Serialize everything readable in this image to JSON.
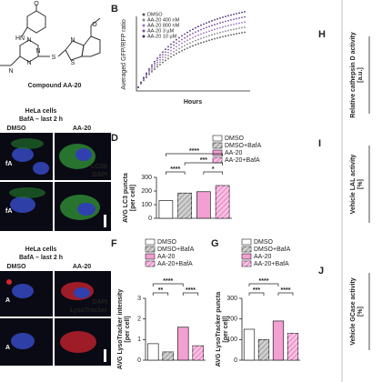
{
  "compound": {
    "atoms": [
      "O",
      "HN",
      "N",
      "N",
      "N",
      "S",
      "S",
      "N",
      "O",
      "N"
    ],
    "name": "Compound AA-20"
  },
  "panel_b": {
    "letter": "B",
    "y_label": "Averaged GFP/RFP ratio",
    "x_label": "Hours",
    "legend": [
      "DMSO",
      "AA-20 400 nM",
      "AA-20 800 nM",
      "AA-20 3 µM",
      "AA-20 10 µM"
    ]
  },
  "lc3_images": {
    "title": "HeLa cells",
    "subtitle": "BafA – last 2 h",
    "columns": [
      "DMSO",
      "AA-20"
    ],
    "row_labels": [
      "fA",
      "fA"
    ],
    "stains": [
      "LC3B",
      "DAPI"
    ]
  },
  "lyso_images": {
    "title": "HeLa cells",
    "subtitle": "BafA – last 2 h",
    "columns": [
      "DMSO",
      "AA-20"
    ],
    "row_labels": [
      "A",
      "A"
    ],
    "stains": [
      "DAPI",
      "LysoTracker"
    ]
  },
  "panel_d": {
    "letter": "D",
    "type": "bar",
    "y_label": "AVG LC3 puncta",
    "y_unit": "[per cell]",
    "categories": [
      "DMSO",
      "DMSO+BafA",
      "AA-20",
      "AA-20+BafA"
    ],
    "values": [
      130,
      185,
      195,
      240
    ],
    "colors": [
      "#ffffff",
      "#b5b5b5",
      "#f29fd2",
      "#f29fd2"
    ],
    "hatched": [
      false,
      true,
      false,
      true
    ],
    "ylim": [
      0,
      300
    ],
    "yticks": [
      0,
      100,
      200,
      300
    ],
    "significance": [
      "****",
      "***",
      "****",
      "*"
    ]
  },
  "panel_f": {
    "letter": "F",
    "type": "bar",
    "y_label": "AVG LysoTracker intensity",
    "y_unit": "[per cell]",
    "categories": [
      "DMSO",
      "DMSO+BafA",
      "AA-20",
      "AA-20+BafA"
    ],
    "values": [
      0.8,
      0.4,
      1.6,
      0.7
    ],
    "colors": [
      "#ffffff",
      "#b5b5b5",
      "#f29fd2",
      "#f29fd2"
    ],
    "hatched": [
      false,
      true,
      false,
      true
    ],
    "ylim": [
      0,
      3
    ],
    "yticks": [
      0,
      1,
      2,
      3
    ],
    "significance": [
      "****",
      "**",
      "****"
    ]
  },
  "panel_g": {
    "letter": "G",
    "type": "bar",
    "y_label": "AVG LysoTracker puncta",
    "y_unit": "[per cell]",
    "categories": [
      "DMSO",
      "DMSO+BafA",
      "AA-20",
      "AA-20+BafA"
    ],
    "values": [
      150,
      100,
      190,
      130
    ],
    "colors": [
      "#ffffff",
      "#b5b5b5",
      "#f29fd2",
      "#f29fd2"
    ],
    "hatched": [
      false,
      true,
      false,
      true
    ],
    "ylim": [
      0,
      300
    ],
    "yticks": [
      0,
      100,
      200,
      300
    ],
    "significance": [
      "****",
      "***",
      "****"
    ]
  },
  "panel_h": {
    "letter": "H",
    "y_label": "Relative cathepsin D activity",
    "y_unit": "[a.u.]"
  },
  "panel_i": {
    "letter": "I",
    "y_label": "Vehicle LAL activity",
    "y_unit": "[%]"
  },
  "panel_j": {
    "letter": "J",
    "y_label": "Vehicle GCase activity",
    "y_unit": "[%]"
  }
}
